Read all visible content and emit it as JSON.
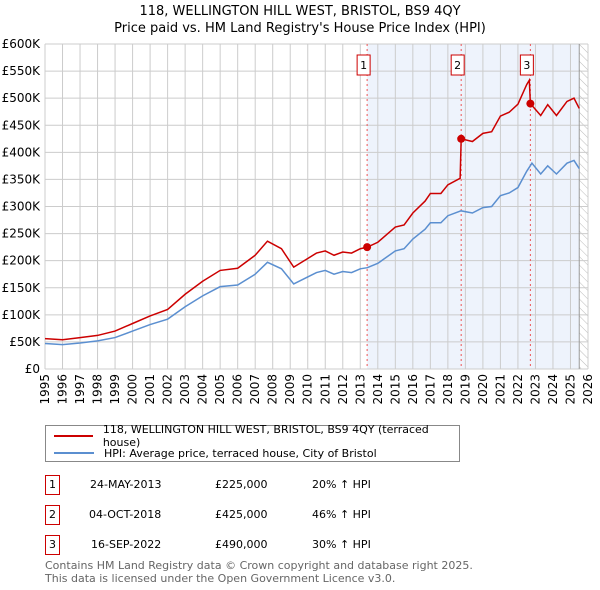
{
  "title": "118, WELLINGTON HILL WEST, BRISTOL, BS9 4QY",
  "subtitle": "Price paid vs. HM Land Registry's House Price Index (HPI)",
  "chart_data": {
    "type": "line",
    "xlim": [
      1995,
      2026
    ],
    "ylim": [
      0,
      600000
    ],
    "y_ticks": [
      {
        "v": 0,
        "l": "£0"
      },
      {
        "v": 50000,
        "l": "£50K"
      },
      {
        "v": 100000,
        "l": "£100K"
      },
      {
        "v": 150000,
        "l": "£150K"
      },
      {
        "v": 200000,
        "l": "£200K"
      },
      {
        "v": 250000,
        "l": "£250K"
      },
      {
        "v": 300000,
        "l": "£300K"
      },
      {
        "v": 350000,
        "l": "£350K"
      },
      {
        "v": 400000,
        "l": "£400K"
      },
      {
        "v": 450000,
        "l": "£450K"
      },
      {
        "v": 500000,
        "l": "£500K"
      },
      {
        "v": 550000,
        "l": "£550K"
      },
      {
        "v": 600000,
        "l": "£600K"
      }
    ],
    "x_ticks": [
      "1995",
      "1996",
      "1997",
      "1998",
      "1999",
      "2000",
      "2001",
      "2002",
      "2003",
      "2004",
      "2005",
      "2006",
      "2007",
      "2008",
      "2009",
      "2010",
      "2011",
      "2012",
      "2013",
      "2014",
      "2015",
      "2016",
      "2017",
      "2018",
      "2019",
      "2020",
      "2021",
      "2022",
      "2023",
      "2024",
      "2025",
      "2026"
    ],
    "grid": true,
    "series": [
      {
        "name": "118, WELLINGTON HILL WEST, BRISTOL, BS9 4QY (terraced house)",
        "color": "#cc0000",
        "x": [
          1995,
          1996,
          1997,
          1998,
          1999,
          2000,
          2001,
          2002,
          2003,
          2004,
          2005,
          2006,
          2007,
          2007.7,
          2008.5,
          2009.2,
          2010,
          2010.5,
          2011,
          2011.5,
          2012,
          2012.5,
          2013,
          2013.4,
          2014,
          2015,
          2015.5,
          2016,
          2016.7,
          2017,
          2017.6,
          2018,
          2018.7,
          2018.76,
          2019.4,
          2020,
          2020.5,
          2021,
          2021.5,
          2022,
          2022.5,
          2022.65,
          2022.71,
          2023.3,
          2023.7,
          2024.2,
          2024.8,
          2025.2,
          2025.5
        ],
        "y": [
          56000,
          54000,
          58000,
          62000,
          70000,
          84000,
          98000,
          110000,
          138000,
          162000,
          182000,
          186000,
          210000,
          236000,
          222000,
          188000,
          204000,
          214000,
          218000,
          210000,
          216000,
          214000,
          222000,
          225000,
          234000,
          262000,
          266000,
          288000,
          310000,
          324000,
          324000,
          340000,
          352000,
          425000,
          420000,
          435000,
          438000,
          467000,
          474000,
          489000,
          525000,
          533000,
          490000,
          468000,
          488000,
          468000,
          494000,
          500000,
          481000
        ]
      },
      {
        "name": "HPI: Average price, terraced house, City of Bristol",
        "color": "#5b8fd0",
        "x": [
          1995,
          1996,
          1997,
          1998,
          1999,
          2000,
          2001,
          2002,
          2003,
          2004,
          2005,
          2006,
          2007,
          2007.7,
          2008.5,
          2009.2,
          2010,
          2010.5,
          2011,
          2011.5,
          2012,
          2012.5,
          2013,
          2013.4,
          2014,
          2015,
          2015.5,
          2016,
          2016.7,
          2017,
          2017.6,
          2018,
          2018.75,
          2019.4,
          2020,
          2020.5,
          2021,
          2021.5,
          2022,
          2022.5,
          2022.8,
          2023.3,
          2023.7,
          2024.2,
          2024.8,
          2025.2,
          2025.5
        ],
        "y": [
          47000,
          45000,
          48000,
          52000,
          58000,
          70000,
          82000,
          92000,
          115000,
          135000,
          152000,
          155000,
          175000,
          197000,
          185000,
          157000,
          170000,
          178000,
          182000,
          175000,
          180000,
          178000,
          185000,
          187000,
          195000,
          218000,
          222000,
          240000,
          258000,
          270000,
          270000,
          283000,
          292000,
          288000,
          298000,
          300000,
          320000,
          325000,
          335000,
          365000,
          380000,
          360000,
          375000,
          360000,
          380000,
          385000,
          370000
        ]
      }
    ],
    "sales": [
      {
        "label": "1",
        "x": 2013.39,
        "y": 225000,
        "date": "24-MAY-2013",
        "price": "£225,000",
        "hpi": "20% ↑ HPI"
      },
      {
        "label": "2",
        "x": 2018.76,
        "y": 425000,
        "date": "04-OCT-2018",
        "price": "£425,000",
        "hpi": "46% ↑ HPI"
      },
      {
        "label": "3",
        "x": 2022.71,
        "y": 490000,
        "date": "16-SEP-2022",
        "price": "£490,000",
        "hpi": "30% ↑ HPI"
      }
    ],
    "shaded_from": 2013.39,
    "forecast_from": 2025.5,
    "legend_position": "below"
  },
  "footer": [
    "Contains HM Land Registry data © Crown copyright and database right 2025.",
    "This data is licensed under the Open Government Licence v3.0."
  ]
}
